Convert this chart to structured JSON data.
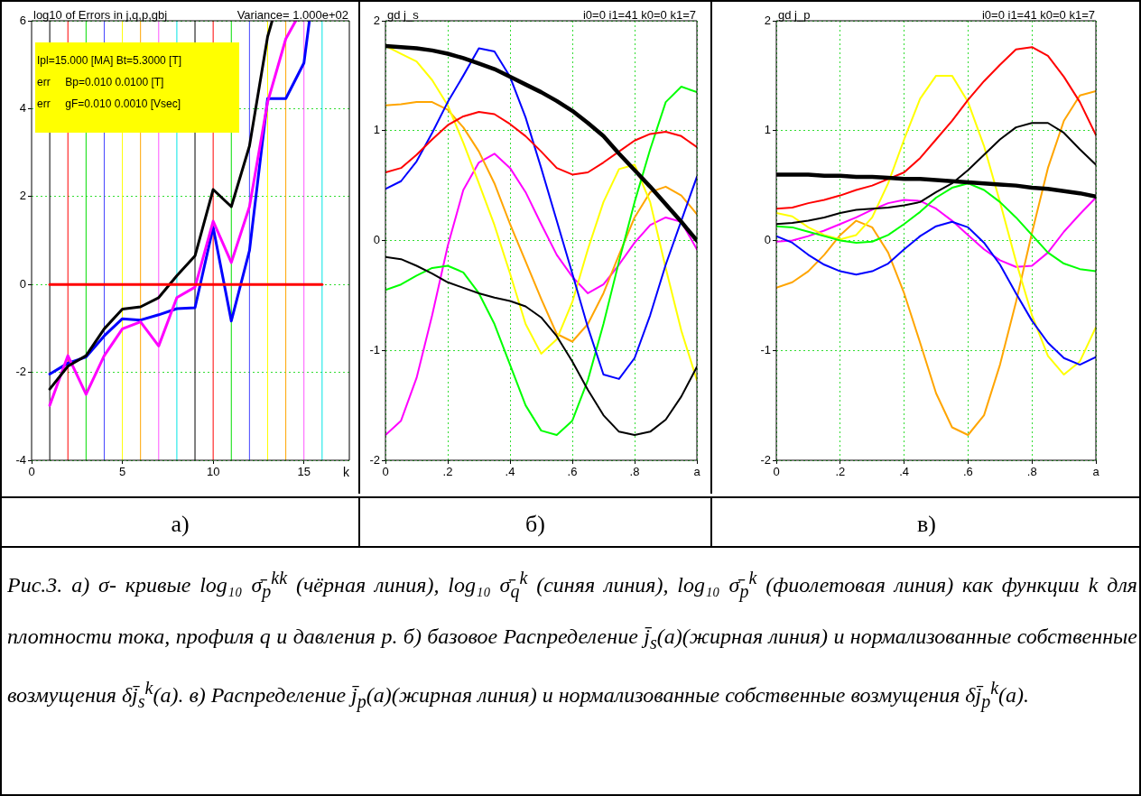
{
  "chart_data": [
    {
      "type": "line",
      "title": "log10 of Errors in j,q,p,gbj",
      "subtitle": "Variance= 1.000e+02",
      "xlabel": "k",
      "annotations": [
        "Ipl=15.000 [MA] Bt=5.3000 [T]",
        "err     Bp=0.010 0.0100 [T]",
        "err     gF=0.010 0.0010 [Vsec]",
        "а)"
      ],
      "xlim": [
        0,
        17.5
      ],
      "xticks": [
        0,
        5,
        10,
        15
      ],
      "ylim": [
        -4,
        6
      ],
      "yticks": [
        -4,
        -2,
        0,
        2,
        4,
        6
      ],
      "grid": "y",
      "ref_lines": [
        {
          "axis": "x",
          "value": 1,
          "color": "#000000"
        },
        {
          "axis": "x",
          "value": 2,
          "color": "#ff0000"
        },
        {
          "axis": "x",
          "value": 3,
          "color": "#00dd00"
        },
        {
          "axis": "x",
          "value": 4,
          "color": "#4444ff"
        },
        {
          "axis": "x",
          "value": 5,
          "color": "#ffff00"
        },
        {
          "axis": "x",
          "value": 6,
          "color": "#ffa500"
        },
        {
          "axis": "x",
          "value": 7,
          "color": "#ff55ff"
        },
        {
          "axis": "x",
          "value": 8,
          "color": "#00e5e5"
        },
        {
          "axis": "x",
          "value": 9,
          "color": "#000000"
        },
        {
          "axis": "x",
          "value": 10,
          "color": "#ff0000"
        },
        {
          "axis": "x",
          "value": 11,
          "color": "#00dd00"
        },
        {
          "axis": "x",
          "value": 12,
          "color": "#4444ff"
        },
        {
          "axis": "x",
          "value": 13,
          "color": "#ffff00"
        },
        {
          "axis": "x",
          "value": 14,
          "color": "#ffa500"
        },
        {
          "axis": "x",
          "value": 15,
          "color": "#ff55ff"
        },
        {
          "axis": "x",
          "value": 16,
          "color": "#00e5e5"
        }
      ],
      "series": [
        {
          "color": "#ff0000",
          "x": [
            1,
            16
          ],
          "values": [
            0,
            0
          ]
        },
        {
          "color": "#000000",
          "x": [
            1,
            2,
            3,
            4,
            5,
            6,
            7,
            8,
            9,
            10,
            11,
            12,
            13,
            13.25
          ],
          "values": [
            -2.38,
            -1.86,
            -1.62,
            -1.01,
            -0.56,
            -0.51,
            -0.3,
            0.2,
            0.65,
            2.16,
            1.77,
            3.15,
            5.64,
            6
          ]
        },
        {
          "color": "#ff00ff",
          "x": [
            1,
            2,
            3,
            4,
            5,
            6,
            7,
            8,
            9,
            10,
            11,
            12,
            13,
            14,
            14.55
          ],
          "values": [
            -2.75,
            -1.62,
            -2.5,
            -1.62,
            -1.01,
            -0.85,
            -1.4,
            -0.3,
            -0.06,
            1.44,
            0.5,
            1.77,
            4.15,
            5.59,
            6
          ]
        },
        {
          "color": "#0000ff",
          "x": [
            1,
            2,
            3,
            4,
            5,
            6,
            7,
            8,
            9,
            10,
            11,
            12,
            13,
            14,
            15,
            15.3
          ],
          "values": [
            -2.04,
            -1.79,
            -1.65,
            -1.17,
            -0.78,
            -0.81,
            -0.69,
            -0.55,
            -0.53,
            1.3,
            -0.83,
            0.77,
            4.23,
            4.23,
            5.04,
            6
          ]
        }
      ]
    },
    {
      "type": "line",
      "title": "gd j_s",
      "subtitle": "i0=0 i1=41 k0=0 k1=7",
      "annotations": [
        "б)"
      ],
      "x": [
        0,
        0.05,
        0.1,
        0.15,
        0.2,
        0.25,
        0.3,
        0.35,
        0.4,
        0.45,
        0.5,
        0.55,
        0.6,
        0.65,
        0.7,
        0.75,
        0.8,
        0.85,
        0.9,
        0.95,
        1
      ],
      "xlim": [
        0,
        1
      ],
      "xticks": [
        0,
        {
          "value": 0.2,
          "label": ".2"
        },
        {
          "value": 0.4,
          "label": ".4"
        },
        {
          "value": 0.6,
          "label": ".6"
        },
        {
          "value": 0.8,
          "label": ".8"
        },
        {
          "value": 1,
          "label": "a"
        }
      ],
      "ylim": [
        -2,
        2
      ],
      "yticks": [
        -2,
        -1,
        0,
        1,
        2
      ],
      "grid": true,
      "series": [
        {
          "color": "#000000",
          "values": [
            1.77,
            1.76,
            1.75,
            1.73,
            1.7,
            1.66,
            1.61,
            1.56,
            1.49,
            1.42,
            1.35,
            1.27,
            1.18,
            1.07,
            0.95,
            0.79,
            0.64,
            0.49,
            0.33,
            0.17,
            0
          ]
        },
        {
          "color": "#000000",
          "values": [
            -0.15,
            -0.17,
            -0.23,
            -0.3,
            -0.38,
            -0.43,
            -0.48,
            -0.52,
            -0.55,
            -0.6,
            -0.7,
            -0.87,
            -1.1,
            -1.36,
            -1.59,
            -1.74,
            -1.77,
            -1.74,
            -1.63,
            -1.42,
            -1.15
          ]
        },
        {
          "color": "#ff0000",
          "values": [
            0.62,
            0.66,
            0.78,
            0.92,
            1.05,
            1.13,
            1.17,
            1.15,
            1.06,
            0.95,
            0.81,
            0.66,
            0.6,
            0.62,
            0.71,
            0.81,
            0.91,
            0.97,
            0.99,
            0.95,
            0.85
          ]
        },
        {
          "color": "#0000ff",
          "values": [
            0.47,
            0.54,
            0.72,
            0.98,
            1.26,
            1.5,
            1.75,
            1.72,
            1.49,
            1.12,
            0.66,
            0.18,
            -0.3,
            -0.79,
            -1.22,
            -1.26,
            -1.07,
            -0.68,
            -0.22,
            0.18,
            0.58
          ]
        },
        {
          "color": "#00ff00",
          "values": [
            -0.45,
            -0.4,
            -0.32,
            -0.25,
            -0.23,
            -0.29,
            -0.48,
            -0.76,
            -1.13,
            -1.5,
            -1.73,
            -1.77,
            -1.64,
            -1.27,
            -0.76,
            -0.19,
            0.35,
            0.83,
            1.26,
            1.4,
            1.35
          ]
        },
        {
          "color": "#ffff00",
          "values": [
            1.77,
            1.7,
            1.63,
            1.46,
            1.23,
            0.89,
            0.52,
            0.14,
            -0.3,
            -0.76,
            -1.03,
            -0.9,
            -0.56,
            -0.08,
            0.35,
            0.65,
            0.69,
            0.35,
            -0.25,
            -0.82,
            -1.27
          ]
        },
        {
          "color": "#ffa500",
          "values": [
            1.23,
            1.24,
            1.26,
            1.26,
            1.19,
            1.03,
            0.81,
            0.52,
            0.15,
            -0.19,
            -0.53,
            -0.85,
            -0.92,
            -0.76,
            -0.48,
            -0.13,
            0.21,
            0.44,
            0.49,
            0.41,
            0.24
          ]
        },
        {
          "color": "#ff00ff",
          "values": [
            -1.77,
            -1.64,
            -1.25,
            -0.68,
            -0.05,
            0.46,
            0.71,
            0.79,
            0.66,
            0.44,
            0.15,
            -0.13,
            -0.33,
            -0.48,
            -0.4,
            -0.22,
            -0.02,
            0.14,
            0.21,
            0.17,
            -0.08
          ]
        }
      ]
    },
    {
      "type": "line",
      "title": "gd j_p",
      "subtitle": "i0=0 i1=41 k0=0 k1=7",
      "annotations": [
        "в)"
      ],
      "x": [
        0,
        0.05,
        0.1,
        0.15,
        0.2,
        0.25,
        0.3,
        0.35,
        0.4,
        0.45,
        0.5,
        0.55,
        0.6,
        0.65,
        0.7,
        0.75,
        0.8,
        0.85,
        0.9,
        0.95,
        1
      ],
      "xlim": [
        0,
        1
      ],
      "xticks": [
        0,
        {
          "value": 0.2,
          "label": ".2"
        },
        {
          "value": 0.4,
          "label": ".4"
        },
        {
          "value": 0.6,
          "label": ".6"
        },
        {
          "value": 0.8,
          "label": ".8"
        },
        {
          "value": 1,
          "label": "a"
        }
      ],
      "ylim": [
        -2,
        2
      ],
      "yticks": [
        -2,
        -1,
        0,
        1,
        2
      ],
      "grid": true,
      "series": [
        {
          "color": "#000000",
          "values": [
            0.6,
            0.6,
            0.6,
            0.59,
            0.59,
            0.58,
            0.58,
            0.57,
            0.56,
            0.56,
            0.55,
            0.54,
            0.53,
            0.52,
            0.51,
            0.5,
            0.48,
            0.47,
            0.45,
            0.43,
            0.4
          ]
        },
        {
          "color": "#000000",
          "values": [
            0.15,
            0.16,
            0.18,
            0.21,
            0.25,
            0.28,
            0.29,
            0.3,
            0.32,
            0.35,
            0.44,
            0.52,
            0.64,
            0.78,
            0.92,
            1.03,
            1.07,
            1.07,
            0.98,
            0.83,
            0.69
          ]
        },
        {
          "color": "#ff0000",
          "values": [
            0.29,
            0.3,
            0.34,
            0.37,
            0.41,
            0.46,
            0.5,
            0.56,
            0.62,
            0.75,
            0.92,
            1.09,
            1.28,
            1.45,
            1.6,
            1.74,
            1.76,
            1.68,
            1.49,
            1.26,
            0.96
          ]
        },
        {
          "color": "#0000ff",
          "values": [
            0.04,
            -0.02,
            -0.13,
            -0.22,
            -0.28,
            -0.31,
            -0.28,
            -0.21,
            -0.08,
            0.04,
            0.13,
            0.17,
            0.12,
            -0.02,
            -0.22,
            -0.48,
            -0.73,
            -0.93,
            -1.07,
            -1.13,
            -1.06
          ]
        },
        {
          "color": "#00ff00",
          "values": [
            0.13,
            0.12,
            0.08,
            0.04,
            0,
            -0.02,
            -0.01,
            0.05,
            0.15,
            0.26,
            0.39,
            0.48,
            0.52,
            0.46,
            0.35,
            0.21,
            0.05,
            -0.11,
            -0.21,
            -0.26,
            -0.28
          ]
        },
        {
          "color": "#ffff00",
          "values": [
            0.25,
            0.22,
            0.12,
            0.05,
            0.01,
            0.05,
            0.21,
            0.52,
            0.92,
            1.29,
            1.5,
            1.5,
            1.26,
            0.86,
            0.35,
            -0.19,
            -0.68,
            -1.05,
            -1.22,
            -1.1,
            -0.79
          ]
        },
        {
          "color": "#ffa500",
          "values": [
            -0.43,
            -0.38,
            -0.28,
            -0.13,
            0.05,
            0.18,
            0.12,
            -0.11,
            -0.48,
            -0.93,
            -1.39,
            -1.7,
            -1.77,
            -1.59,
            -1.13,
            -0.56,
            0.07,
            0.66,
            1.09,
            1.32,
            1.36
          ]
        },
        {
          "color": "#ff00ff",
          "values": [
            -0.01,
            0,
            0.04,
            0.09,
            0.15,
            0.21,
            0.28,
            0.34,
            0.37,
            0.36,
            0.29,
            0.18,
            0.05,
            -0.08,
            -0.18,
            -0.24,
            -0.23,
            -0.11,
            0.08,
            0.24,
            0.39
          ]
        }
      ]
    },
    {
      "type": "other",
      "annotations": [
        "Рис.3. а) σ- кривые log₁₀ σ̄$_{p}$$^{kk}$ (чёрная линия), log₁₀ σ̄$_{q}$$^{k}$ (синяя линия), log₁₀ σ̄$_{p}$$^{k}$ (фиолетовая линия) как функции k для плотности тока, профиля q и давления p. б) базовое Распределение j̄$_{s}$(a)(жирная линия) и нормализованные собственные возмущения δj̄$_{s}$$^{k}$(a). в) Распределение j̄$_{p}$(a)(жирная линия) и нормализованные собственные возмущения δj̄$_{p}$$^{k}$(a)."
      ]
    }
  ]
}
